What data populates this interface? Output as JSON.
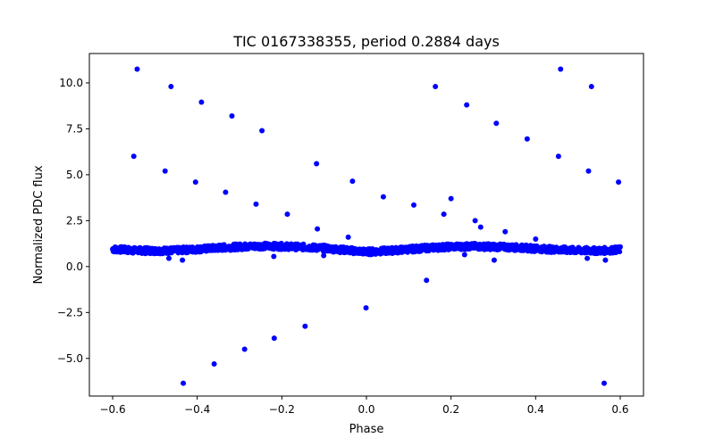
{
  "chart_data": {
    "type": "scatter",
    "title": "TIC 0167338355, period 0.2884 days",
    "xlabel": "Phase",
    "ylabel": "Normalized PDC flux",
    "xlim": [
      -0.655,
      0.655
    ],
    "ylim": [
      -7.05,
      11.6
    ],
    "xticks": [
      -0.6,
      -0.4,
      -0.2,
      0.0,
      0.2,
      0.4,
      0.6
    ],
    "xtick_labels": [
      "−0.6",
      "−0.4",
      "−0.2",
      "0.0",
      "0.2",
      "0.4",
      "0.6"
    ],
    "yticks": [
      -5.0,
      -2.5,
      0.0,
      2.5,
      5.0,
      7.5,
      10.0
    ],
    "ytick_labels": [
      "−5.0",
      "−2.5",
      "0.0",
      "2.5",
      "5.0",
      "7.5",
      "10.0"
    ],
    "grid": false,
    "legend": "none",
    "marker_color": "#0000ff",
    "baseline": {
      "description": "dense band of points forming a sinusoidal light curve",
      "x_start": -0.6,
      "x_end": 0.6,
      "points": [
        [
          -0.6,
          0.95
        ],
        [
          -0.55,
          0.88
        ],
        [
          -0.5,
          0.86
        ],
        [
          -0.45,
          0.88
        ],
        [
          -0.4,
          0.94
        ],
        [
          -0.35,
          1.02
        ],
        [
          -0.3,
          1.08
        ],
        [
          -0.25,
          1.12
        ],
        [
          -0.2,
          1.1
        ],
        [
          -0.15,
          1.06
        ],
        [
          -0.1,
          1.0
        ],
        [
          -0.05,
          0.9
        ],
        [
          0.0,
          0.8
        ],
        [
          0.05,
          0.86
        ],
        [
          0.1,
          0.94
        ],
        [
          0.15,
          1.02
        ],
        [
          0.2,
          1.08
        ],
        [
          0.25,
          1.1
        ],
        [
          0.3,
          1.08
        ],
        [
          0.35,
          1.04
        ],
        [
          0.4,
          0.98
        ],
        [
          0.45,
          0.92
        ],
        [
          0.5,
          0.88
        ],
        [
          0.55,
          0.86
        ],
        [
          0.6,
          0.92
        ]
      ]
    },
    "outliers": [
      {
        "x": -0.542,
        "y": 10.75
      },
      {
        "x": -0.462,
        "y": 9.8
      },
      {
        "x": -0.39,
        "y": 8.95
      },
      {
        "x": -0.318,
        "y": 8.2
      },
      {
        "x": -0.247,
        "y": 7.4
      },
      {
        "x": -0.118,
        "y": 5.6
      },
      {
        "x": -0.033,
        "y": 4.65
      },
      {
        "x": 0.04,
        "y": 3.8
      },
      {
        "x": 0.112,
        "y": 3.35
      },
      {
        "x": 0.163,
        "y": 9.8
      },
      {
        "x": 0.237,
        "y": 8.8
      },
      {
        "x": 0.307,
        "y": 7.8
      },
      {
        "x": 0.38,
        "y": 6.95
      },
      {
        "x": 0.454,
        "y": 6.0
      },
      {
        "x": 0.459,
        "y": 10.75
      },
      {
        "x": 0.532,
        "y": 9.8
      },
      {
        "x": 0.525,
        "y": 5.2
      },
      {
        "x": 0.596,
        "y": 4.6
      },
      {
        "x": -0.55,
        "y": 6.0
      },
      {
        "x": -0.476,
        "y": 5.2
      },
      {
        "x": -0.404,
        "y": 4.6
      },
      {
        "x": -0.333,
        "y": 4.05
      },
      {
        "x": -0.261,
        "y": 3.4
      },
      {
        "x": -0.187,
        "y": 2.85
      },
      {
        "x": -0.116,
        "y": 2.05
      },
      {
        "x": -0.101,
        "y": 0.6
      },
      {
        "x": -0.043,
        "y": 1.6
      },
      {
        "x": 0.2,
        "y": 3.7
      },
      {
        "x": 0.183,
        "y": 2.85
      },
      {
        "x": 0.257,
        "y": 2.5
      },
      {
        "x": 0.27,
        "y": 2.15
      },
      {
        "x": 0.328,
        "y": 1.9
      },
      {
        "x": 0.4,
        "y": 1.5
      },
      {
        "x": 0.142,
        "y": -0.75
      },
      {
        "x": -0.001,
        "y": -2.25
      },
      {
        "x": -0.145,
        "y": -3.25
      },
      {
        "x": -0.218,
        "y": -3.9
      },
      {
        "x": -0.288,
        "y": -4.5
      },
      {
        "x": -0.36,
        "y": -5.3
      },
      {
        "x": -0.433,
        "y": -6.35
      },
      {
        "x": 0.562,
        "y": -6.35
      },
      {
        "x": -0.219,
        "y": 0.55
      },
      {
        "x": -0.435,
        "y": 0.35
      },
      {
        "x": -0.467,
        "y": 0.45
      },
      {
        "x": 0.565,
        "y": 0.35
      },
      {
        "x": 0.302,
        "y": 0.35
      },
      {
        "x": 0.522,
        "y": 0.45
      },
      {
        "x": 0.232,
        "y": 0.65
      }
    ]
  }
}
